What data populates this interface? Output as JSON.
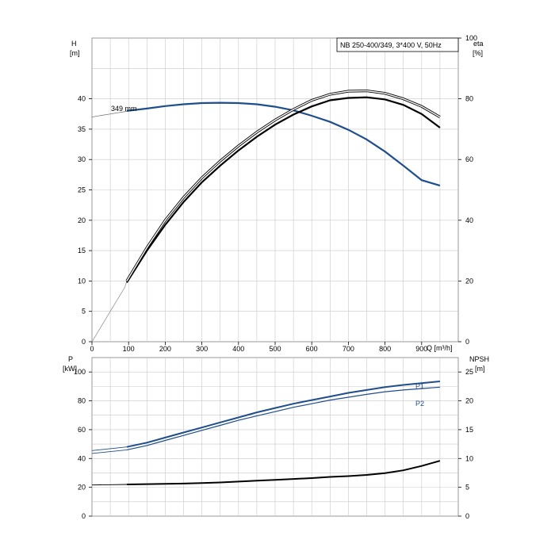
{
  "chart_data": [
    {
      "panel": "upper",
      "type": "line",
      "title": "NB 250-400/349, 3*400 V, 50Hz",
      "xlabel": "Q [m³/h]",
      "x_ticks": [
        "0",
        "100",
        "200",
        "300",
        "400",
        "500",
        "600",
        "700",
        "800",
        "900"
      ],
      "xlim": [
        0,
        1000
      ],
      "left_axis": {
        "label_line1": "H",
        "label_line2": "[m]",
        "ylim": [
          0,
          50
        ],
        "ticks": [
          "0",
          "5",
          "10",
          "15",
          "20",
          "25",
          "30",
          "35",
          "40"
        ]
      },
      "right_axis": {
        "label_line1": "eta",
        "label_line2": "[%]",
        "ylim": [
          0,
          100
        ],
        "ticks": [
          "0",
          "20",
          "40",
          "60",
          "80",
          "100"
        ]
      },
      "curve_label": "349 mm",
      "colors": {
        "head": "#1f4e8c",
        "eta": "#000000",
        "grid": "#c8c8c8"
      },
      "series": [
        {
          "axis": "left",
          "style": "thin-extension",
          "x": [
            0,
            20,
            40,
            60,
            80,
            95
          ],
          "y": [
            37.0,
            37.2,
            37.4,
            37.6,
            37.8,
            37.95
          ]
        },
        {
          "axis": "left",
          "style": "thick",
          "x": [
            95,
            150,
            200,
            250,
            300,
            350,
            400,
            450,
            500,
            550,
            600,
            650,
            700,
            750,
            800,
            850,
            900,
            950
          ],
          "y": [
            38.0,
            38.4,
            38.8,
            39.1,
            39.3,
            39.35,
            39.3,
            39.1,
            38.7,
            38.1,
            37.2,
            36.2,
            34.9,
            33.3,
            31.3,
            29.0,
            26.6,
            25.7
          ]
        },
        {
          "axis": "right",
          "style": "thin-extension",
          "x": [
            0,
            30,
            60,
            90,
            95
          ],
          "y": [
            0,
            6,
            12,
            18,
            20
          ]
        },
        {
          "axis": "right",
          "style": "thick",
          "x": [
            95,
            150,
            200,
            250,
            300,
            350,
            400,
            450,
            500,
            550,
            600,
            650,
            700,
            750,
            800,
            850,
            900,
            950
          ],
          "y": [
            19.5,
            30,
            38.5,
            46,
            52.5,
            58,
            63,
            67.5,
            71.5,
            74.8,
            77.5,
            79.5,
            80.3,
            80.5,
            79.8,
            78,
            75,
            70.5
          ]
        },
        {
          "axis": "right",
          "style": "double",
          "x": [
            95,
            150,
            200,
            250,
            300,
            350,
            400,
            450,
            500,
            550,
            600,
            650,
            700,
            750,
            800,
            850,
            900,
            950
          ],
          "y": [
            20,
            31,
            40,
            47.5,
            54,
            59.5,
            64.5,
            69,
            73,
            76.5,
            79.5,
            81.5,
            82.5,
            82.6,
            81.8,
            80,
            77.5,
            74
          ]
        }
      ]
    },
    {
      "panel": "lower",
      "type": "line",
      "xlim": [
        0,
        1000
      ],
      "left_axis": {
        "label_line1": "P",
        "label_line2": "[kW]",
        "ylim": [
          0,
          110
        ],
        "ticks": [
          "0",
          "20",
          "40",
          "60",
          "80",
          "100"
        ]
      },
      "right_axis": {
        "label_line1": "NPSH",
        "label_line2": "[m]",
        "ylim": [
          0,
          27.5
        ],
        "ticks": [
          "0",
          "5",
          "10",
          "15",
          "20",
          "25"
        ]
      },
      "colors": {
        "power": "#1f4e8c",
        "npsh": "#000000",
        "grid": "#c8c8c8"
      },
      "series": [
        {
          "name": "P1",
          "axis": "left",
          "x": [
            0,
            95,
            150,
            200,
            250,
            300,
            350,
            400,
            450,
            500,
            550,
            600,
            650,
            700,
            750,
            800,
            850,
            900,
            950
          ],
          "y": [
            45.5,
            48,
            51,
            54.5,
            58,
            61.5,
            65,
            68.5,
            72,
            75,
            78,
            80.5,
            83,
            85.5,
            87.5,
            89.5,
            91,
            92.3,
            93.5
          ]
        },
        {
          "name": "P2",
          "axis": "left",
          "x": [
            0,
            95,
            150,
            200,
            250,
            300,
            350,
            400,
            450,
            500,
            550,
            600,
            650,
            700,
            750,
            800,
            850,
            900,
            950
          ],
          "y": [
            43.5,
            46,
            49,
            52.5,
            56,
            59.5,
            63,
            66.5,
            69.5,
            72.5,
            75.5,
            78,
            80.5,
            82.5,
            84.5,
            86.3,
            87.5,
            88.5,
            89.5
          ]
        },
        {
          "axis": "right",
          "x": [
            0,
            95,
            150,
            200,
            250,
            300,
            350,
            400,
            450,
            500,
            550,
            600,
            650,
            700,
            750,
            800,
            850,
            900,
            950
          ],
          "y": [
            5.4,
            5.5,
            5.55,
            5.6,
            5.65,
            5.75,
            5.85,
            6.0,
            6.15,
            6.3,
            6.45,
            6.6,
            6.8,
            6.95,
            7.15,
            7.45,
            7.95,
            8.7,
            9.6
          ]
        }
      ]
    }
  ]
}
